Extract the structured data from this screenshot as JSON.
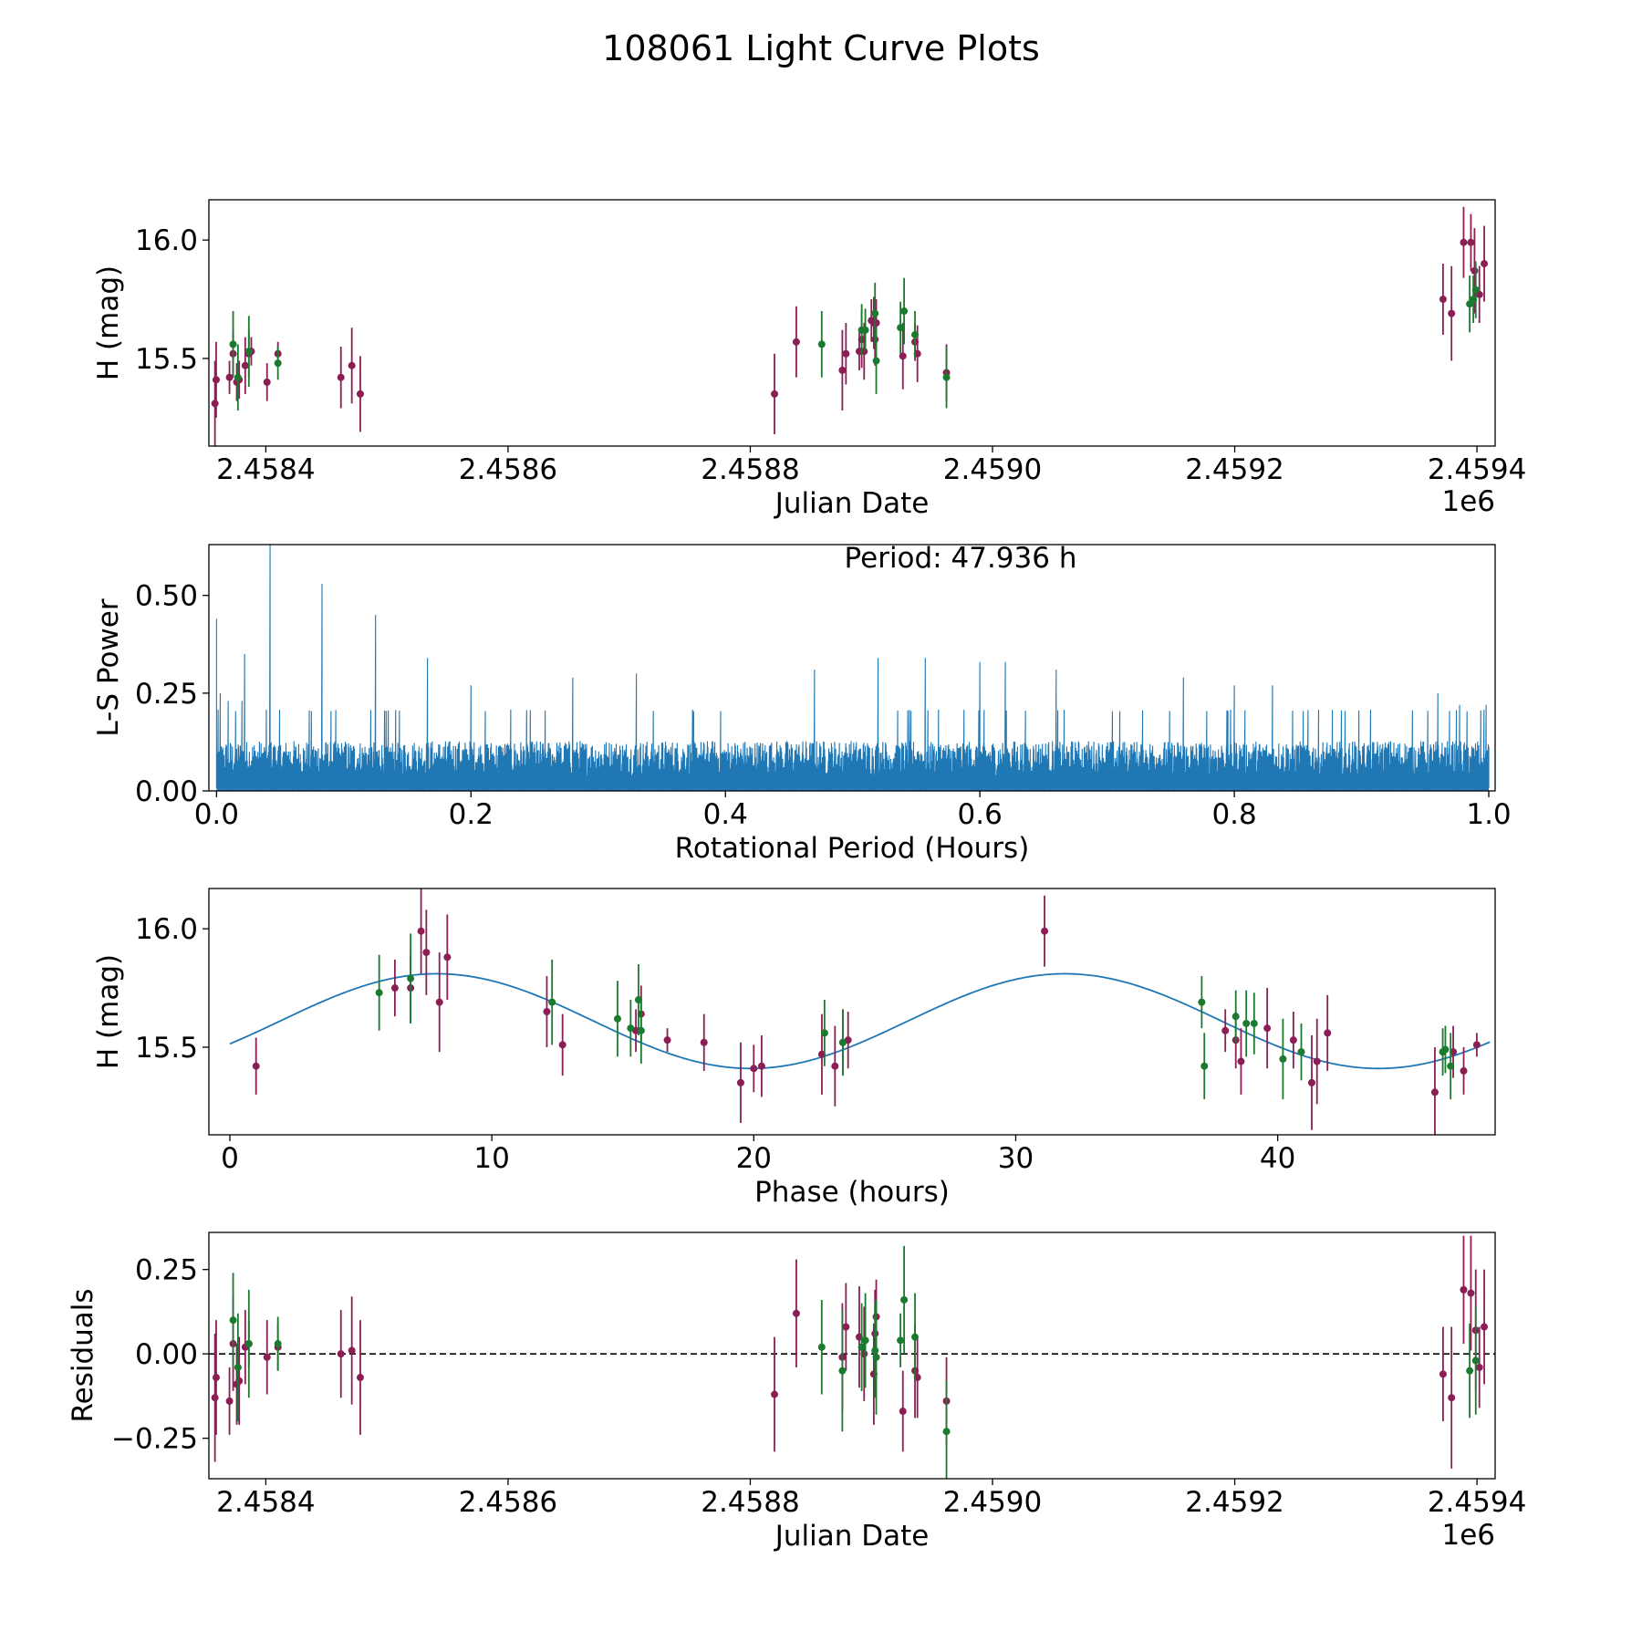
{
  "figure_title": "108061 Light Curve Plots",
  "colors": {
    "filter_r": "#8b1e55",
    "filter_g": "#1a7a2f",
    "line": "#1f77b4",
    "dash": "#000000"
  },
  "chart_data": [
    {
      "id": "panel-lightcurve",
      "type": "scatter",
      "xlabel": "Julian Date",
      "ylabel": "H (mag)",
      "xlim": [
        2458353,
        2459415
      ],
      "ylim": [
        15.13,
        16.17
      ],
      "xticks": [
        2458400,
        2458600,
        2458800,
        2459000,
        2459200,
        2459400
      ],
      "xtick_labels": [
        "2.4584",
        "2.4586",
        "2.4588",
        "2.4590",
        "2.4592",
        "2.4594"
      ],
      "offset_label": "1e6",
      "yticks": [
        15.5,
        16.0
      ],
      "ytick_labels": [
        "15.5",
        "16.0"
      ],
      "series": [
        {
          "name": "r",
          "color": "#8b1e55",
          "points": [
            [
              2458358,
              15.31,
              0.18
            ],
            [
              2458359,
              15.41,
              0.16
            ],
            [
              2458370,
              15.42,
              0.07
            ],
            [
              2458373,
              15.52,
              0.1
            ],
            [
              2458376,
              15.4,
              0.08
            ],
            [
              2458378,
              15.41,
              0.08
            ],
            [
              2458383,
              15.47,
              0.12
            ],
            [
              2458386,
              15.52,
              0.1
            ],
            [
              2458388,
              15.53,
              0.06
            ],
            [
              2458401,
              15.4,
              0.08
            ],
            [
              2458410,
              15.52,
              0.05
            ],
            [
              2458462,
              15.42,
              0.13
            ],
            [
              2458471,
              15.47,
              0.16
            ],
            [
              2458478,
              15.35,
              0.16
            ],
            [
              2458820,
              15.35,
              0.17
            ],
            [
              2458838,
              15.57,
              0.15
            ],
            [
              2458876,
              15.45,
              0.17
            ],
            [
              2458879,
              15.52,
              0.13
            ],
            [
              2458890,
              15.53,
              0.08
            ],
            [
              2458892,
              15.58,
              0.12
            ],
            [
              2458894,
              15.53,
              0.12
            ],
            [
              2458900,
              15.66,
              0.09
            ],
            [
              2458902,
              15.65,
              0.11
            ],
            [
              2458903,
              15.58,
              0.11
            ],
            [
              2458904,
              15.65,
              0.1
            ],
            [
              2458926,
              15.51,
              0.14
            ],
            [
              2458936,
              15.57,
              0.08
            ],
            [
              2458938,
              15.52,
              0.12
            ],
            [
              2458962,
              15.44,
              0.12
            ],
            [
              2459372,
              15.75,
              0.15
            ],
            [
              2459379,
              15.69,
              0.2
            ],
            [
              2459389,
              15.99,
              0.15
            ],
            [
              2459395,
              15.99,
              0.12
            ],
            [
              2459398,
              15.87,
              0.18
            ],
            [
              2459402,
              15.77,
              0.12
            ],
            [
              2459406,
              15.9,
              0.16
            ]
          ]
        },
        {
          "name": "g",
          "color": "#1a7a2f",
          "points": [
            [
              2458373,
              15.56,
              0.14
            ],
            [
              2458377,
              15.42,
              0.14
            ],
            [
              2458386,
              15.53,
              0.15
            ],
            [
              2458410,
              15.48,
              0.07
            ],
            [
              2458859,
              15.56,
              0.14
            ],
            [
              2458892,
              15.62,
              0.11
            ],
            [
              2458895,
              15.62,
              0.09
            ],
            [
              2458903,
              15.69,
              0.13
            ],
            [
              2458904,
              15.49,
              0.14
            ],
            [
              2458924,
              15.63,
              0.11
            ],
            [
              2458927,
              15.7,
              0.14
            ],
            [
              2458936,
              15.6,
              0.1
            ],
            [
              2458962,
              15.42,
              0.13
            ],
            [
              2459394,
              15.73,
              0.12
            ],
            [
              2459397,
              15.75,
              0.1
            ],
            [
              2459399,
              15.79,
              0.12
            ]
          ]
        }
      ]
    },
    {
      "id": "panel-periodogram",
      "type": "line",
      "xlabel": "Rotational Period (Hours)",
      "ylabel": "L-S Power",
      "xlim": [
        -0.006,
        1.005
      ],
      "ylim": [
        0,
        0.63
      ],
      "xticks": [
        0.0,
        0.2,
        0.4,
        0.6,
        0.8,
        1.0
      ],
      "xtick_labels": [
        "0.0",
        "0.2",
        "0.4",
        "0.6",
        "0.8",
        "1.0"
      ],
      "yticks": [
        0.0,
        0.25,
        0.5
      ],
      "ytick_labels": [
        "0.00",
        "0.25",
        "0.50"
      ],
      "annotation": "Period: 47.936 h",
      "color": "#1f77b4",
      "baseline_power": 0.13,
      "peaks": [
        [
          0.0,
          0.44
        ],
        [
          0.003,
          0.25
        ],
        [
          0.009,
          0.23
        ],
        [
          0.02,
          0.23
        ],
        [
          0.022,
          0.35
        ],
        [
          0.042,
          0.63
        ],
        [
          0.083,
          0.53
        ],
        [
          0.125,
          0.45
        ],
        [
          0.166,
          0.34
        ],
        [
          0.2,
          0.27
        ],
        [
          0.28,
          0.29
        ],
        [
          0.33,
          0.3
        ],
        [
          0.47,
          0.31
        ],
        [
          0.52,
          0.34
        ],
        [
          0.557,
          0.34
        ],
        [
          0.6,
          0.33
        ],
        [
          0.62,
          0.33
        ],
        [
          0.66,
          0.31
        ],
        [
          0.76,
          0.29
        ],
        [
          0.8,
          0.27
        ],
        [
          0.83,
          0.27
        ],
        [
          0.96,
          0.25
        ],
        [
          0.977,
          0.22
        ],
        [
          0.998,
          0.22
        ]
      ]
    },
    {
      "id": "panel-phased",
      "type": "scatter",
      "xlabel": "Phase (hours)",
      "ylabel": "H (mag)",
      "xlim": [
        -0.8,
        48.3
      ],
      "ylim": [
        15.13,
        16.17
      ],
      "xticks": [
        0,
        10,
        20,
        30,
        40
      ],
      "xtick_labels": [
        "0",
        "10",
        "20",
        "30",
        "40"
      ],
      "yticks": [
        15.5,
        16.0
      ],
      "ytick_labels": [
        "15.5",
        "16.0"
      ],
      "fit": {
        "mean": 15.61,
        "amplitude": 0.2,
        "period_hours": 23.968,
        "phase_of_max_hours": 7.9,
        "x_range": [
          0,
          48.1
        ]
      },
      "series": [
        {
          "name": "r",
          "color": "#8b1e55",
          "points": [
            [
              1.0,
              15.42,
              0.12
            ],
            [
              6.3,
              15.75,
              0.12
            ],
            [
              6.9,
              15.75,
              0.14
            ],
            [
              7.3,
              15.99,
              0.18
            ],
            [
              7.5,
              15.9,
              0.18
            ],
            [
              8.0,
              15.69,
              0.21
            ],
            [
              8.3,
              15.88,
              0.18
            ],
            [
              12.1,
              15.65,
              0.15
            ],
            [
              12.7,
              15.51,
              0.13
            ],
            [
              15.5,
              15.57,
              0.09
            ],
            [
              15.7,
              15.64,
              0.12
            ],
            [
              16.7,
              15.53,
              0.05
            ],
            [
              18.1,
              15.52,
              0.12
            ],
            [
              19.5,
              15.35,
              0.17
            ],
            [
              20.0,
              15.41,
              0.1
            ],
            [
              20.3,
              15.42,
              0.13
            ],
            [
              22.6,
              15.47,
              0.17
            ],
            [
              23.1,
              15.42,
              0.17
            ],
            [
              23.4,
              15.52,
              0.14
            ],
            [
              23.6,
              15.53,
              0.12
            ],
            [
              31.1,
              15.99,
              0.15
            ],
            [
              38.0,
              15.57,
              0.09
            ],
            [
              38.4,
              15.53,
              0.12
            ],
            [
              38.6,
              15.44,
              0.14
            ],
            [
              39.6,
              15.58,
              0.17
            ],
            [
              40.6,
              15.53,
              0.12
            ],
            [
              41.3,
              15.35,
              0.2
            ],
            [
              41.5,
              15.44,
              0.18
            ],
            [
              41.9,
              15.56,
              0.16
            ],
            [
              46.0,
              15.31,
              0.19
            ],
            [
              46.7,
              15.48,
              0.11
            ],
            [
              47.1,
              15.4,
              0.1
            ],
            [
              47.6,
              15.51,
              0.05
            ]
          ]
        },
        {
          "name": "g",
          "color": "#1a7a2f",
          "points": [
            [
              5.7,
              15.73,
              0.16
            ],
            [
              6.9,
              15.79,
              0.19
            ],
            [
              12.3,
              15.69,
              0.18
            ],
            [
              14.8,
              15.62,
              0.16
            ],
            [
              15.3,
              15.58,
              0.12
            ],
            [
              15.6,
              15.7,
              0.15
            ],
            [
              15.7,
              15.57,
              0.14
            ],
            [
              22.7,
              15.56,
              0.14
            ],
            [
              23.4,
              15.52,
              0.14
            ],
            [
              37.1,
              15.69,
              0.11
            ],
            [
              37.2,
              15.42,
              0.14
            ],
            [
              38.4,
              15.63,
              0.11
            ],
            [
              38.8,
              15.6,
              0.14
            ],
            [
              39.1,
              15.6,
              0.13
            ],
            [
              40.2,
              15.45,
              0.17
            ],
            [
              40.9,
              15.48,
              0.12
            ],
            [
              46.3,
              15.48,
              0.1
            ],
            [
              46.4,
              15.49,
              0.1
            ],
            [
              46.6,
              15.42,
              0.14
            ]
          ]
        }
      ]
    },
    {
      "id": "panel-residuals",
      "type": "scatter",
      "xlabel": "Julian Date",
      "ylabel": "Residuals",
      "xlim": [
        2458353,
        2459415
      ],
      "ylim": [
        -0.37,
        0.36
      ],
      "xticks": [
        2458400,
        2458600,
        2458800,
        2459000,
        2459200,
        2459400
      ],
      "xtick_labels": [
        "2.4584",
        "2.4586",
        "2.4588",
        "2.4590",
        "2.4592",
        "2.4594"
      ],
      "offset_label": "1e6",
      "yticks": [
        -0.25,
        0.0,
        0.25
      ],
      "ytick_labels": [
        "−0.25",
        "0.00",
        "0.25"
      ],
      "reference_line": 0.0,
      "series": [
        {
          "name": "r",
          "color": "#8b1e55",
          "points": [
            [
              2458358,
              -0.13,
              0.19
            ],
            [
              2458359,
              -0.07,
              0.17
            ],
            [
              2458370,
              -0.14,
              0.1
            ],
            [
              2458373,
              0.03,
              0.14
            ],
            [
              2458376,
              -0.09,
              0.12
            ],
            [
              2458378,
              -0.08,
              0.13
            ],
            [
              2458383,
              0.02,
              0.11
            ],
            [
              2458386,
              0.03,
              0.07
            ],
            [
              2458401,
              -0.01,
              0.11
            ],
            [
              2458410,
              0.02,
              0.07
            ],
            [
              2458462,
              0.0,
              0.13
            ],
            [
              2458471,
              0.01,
              0.16
            ],
            [
              2458478,
              -0.07,
              0.17
            ],
            [
              2458820,
              -0.12,
              0.17
            ],
            [
              2458838,
              0.12,
              0.16
            ],
            [
              2458876,
              -0.01,
              0.16
            ],
            [
              2458879,
              0.08,
              0.13
            ],
            [
              2458890,
              0.05,
              0.15
            ],
            [
              2458894,
              0.0,
              0.14
            ],
            [
              2458902,
              -0.06,
              0.15
            ],
            [
              2458903,
              0.06,
              0.13
            ],
            [
              2458904,
              0.11,
              0.11
            ],
            [
              2458926,
              -0.17,
              0.12
            ],
            [
              2458936,
              -0.05,
              0.14
            ],
            [
              2458938,
              -0.07,
              0.12
            ],
            [
              2458962,
              -0.14,
              0.13
            ],
            [
              2459372,
              -0.06,
              0.14
            ],
            [
              2459379,
              -0.13,
              0.21
            ],
            [
              2459389,
              0.19,
              0.16
            ],
            [
              2459395,
              0.18,
              0.17
            ],
            [
              2459399,
              0.07,
              0.18
            ],
            [
              2459402,
              -0.04,
              0.12
            ],
            [
              2459406,
              0.08,
              0.17
            ]
          ]
        },
        {
          "name": "g",
          "color": "#1a7a2f",
          "points": [
            [
              2458373,
              0.1,
              0.14
            ],
            [
              2458377,
              -0.04,
              0.16
            ],
            [
              2458386,
              0.03,
              0.16
            ],
            [
              2458410,
              0.03,
              0.08
            ],
            [
              2458859,
              0.02,
              0.14
            ],
            [
              2458876,
              -0.05,
              0.18
            ],
            [
              2458892,
              0.02,
              0.13
            ],
            [
              2458895,
              0.04,
              0.14
            ],
            [
              2458903,
              0.01,
              0.14
            ],
            [
              2458904,
              -0.01,
              0.17
            ],
            [
              2458924,
              0.04,
              0.08
            ],
            [
              2458927,
              0.16,
              0.16
            ],
            [
              2458936,
              0.05,
              0.13
            ],
            [
              2458962,
              -0.23,
              0.15
            ],
            [
              2459394,
              -0.05,
              0.14
            ],
            [
              2459399,
              -0.02,
              0.16
            ]
          ]
        }
      ]
    }
  ]
}
